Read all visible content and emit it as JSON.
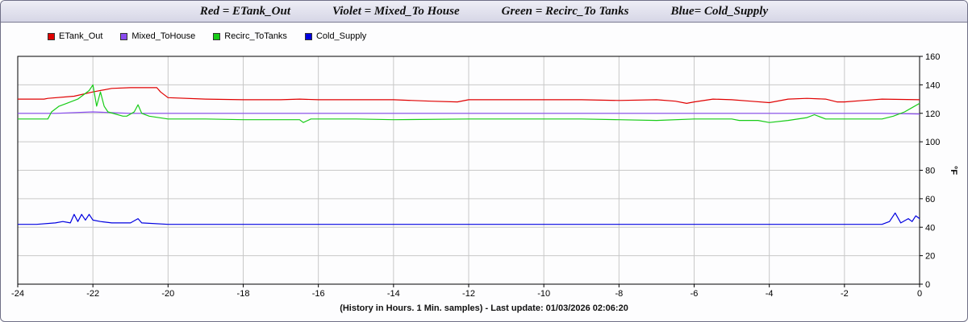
{
  "header": {
    "segments": [
      "Red = ETank_Out",
      "Violet = Mixed_To House",
      "Green = Recirc_To Tanks",
      "Blue= Cold_Supply"
    ]
  },
  "legend": [
    {
      "label": "ETank_Out",
      "color": "#e00000"
    },
    {
      "label": "Mixed_ToHouse",
      "color": "#8a4cf0"
    },
    {
      "label": "Recirc_ToTanks",
      "color": "#17cc17"
    },
    {
      "label": "Cold_Supply",
      "color": "#0000e0"
    }
  ],
  "footer": "(History in Hours. 1 Min. samples) - Last update: 01/03/2026 02:06:20",
  "chart_data": {
    "type": "line",
    "xlim": [
      -24,
      0
    ],
    "ylim": [
      0,
      160
    ],
    "x_ticks": [
      "-24",
      "-22",
      "-20",
      "-18",
      "-16",
      "-14",
      "-12",
      "-10",
      "-8",
      "-6",
      "-4",
      "-2",
      "0"
    ],
    "y_ticks": [
      "0",
      "20",
      "40",
      "60",
      "80",
      "100",
      "120",
      "140",
      "160"
    ],
    "ylabel": "°F",
    "grid": true,
    "series": [
      {
        "name": "ETank_Out",
        "color": "#e00000",
        "points": [
          [
            -24,
            130
          ],
          [
            -23.3,
            130
          ],
          [
            -23.2,
            130.5
          ],
          [
            -22.5,
            132
          ],
          [
            -22,
            135
          ],
          [
            -21.5,
            137.5
          ],
          [
            -21,
            138
          ],
          [
            -20.3,
            138
          ],
          [
            -20.2,
            135
          ],
          [
            -20,
            131
          ],
          [
            -19,
            130
          ],
          [
            -18,
            129.5
          ],
          [
            -17,
            129.5
          ],
          [
            -16.5,
            130
          ],
          [
            -16,
            129.5
          ],
          [
            -15,
            129.5
          ],
          [
            -14,
            129.5
          ],
          [
            -13,
            128.5
          ],
          [
            -12.3,
            128
          ],
          [
            -12,
            129.5
          ],
          [
            -11,
            129.5
          ],
          [
            -10,
            129.5
          ],
          [
            -9,
            129.5
          ],
          [
            -8,
            129
          ],
          [
            -7,
            129.5
          ],
          [
            -6.5,
            128.5
          ],
          [
            -6.2,
            127
          ],
          [
            -6,
            128
          ],
          [
            -5.5,
            130
          ],
          [
            -5,
            129.5
          ],
          [
            -4.5,
            128.5
          ],
          [
            -4,
            127.5
          ],
          [
            -3.5,
            130
          ],
          [
            -3,
            130.5
          ],
          [
            -2.5,
            130
          ],
          [
            -2.2,
            128
          ],
          [
            -2,
            128
          ],
          [
            -1.5,
            129
          ],
          [
            -1,
            130
          ],
          [
            0,
            129.5
          ]
        ]
      },
      {
        "name": "Mixed_ToHouse",
        "color": "#8a4cf0",
        "points": [
          [
            -24,
            120
          ],
          [
            -23,
            120
          ],
          [
            -22,
            121
          ],
          [
            -21,
            120
          ],
          [
            -20,
            120
          ],
          [
            -18,
            120
          ],
          [
            -16,
            120
          ],
          [
            -14,
            120
          ],
          [
            -12,
            120
          ],
          [
            -10,
            120
          ],
          [
            -8,
            120
          ],
          [
            -6,
            120
          ],
          [
            -4,
            120
          ],
          [
            -2,
            120
          ],
          [
            -1,
            120
          ],
          [
            0,
            119.5
          ]
        ]
      },
      {
        "name": "Recirc_ToTanks",
        "color": "#17cc17",
        "points": [
          [
            -24,
            116
          ],
          [
            -23.2,
            116
          ],
          [
            -23.1,
            121
          ],
          [
            -22.9,
            125
          ],
          [
            -22.7,
            127
          ],
          [
            -22.4,
            130
          ],
          [
            -22.1,
            136
          ],
          [
            -22,
            140
          ],
          [
            -21.9,
            125
          ],
          [
            -21.8,
            135
          ],
          [
            -21.7,
            125
          ],
          [
            -21.6,
            121
          ],
          [
            -21.2,
            118
          ],
          [
            -21.1,
            118
          ],
          [
            -20.9,
            121
          ],
          [
            -20.8,
            126
          ],
          [
            -20.7,
            120
          ],
          [
            -20.5,
            118
          ],
          [
            -20,
            116
          ],
          [
            -19,
            116
          ],
          [
            -18,
            115.5
          ],
          [
            -16.5,
            115.5
          ],
          [
            -16.4,
            113.5
          ],
          [
            -16.2,
            116
          ],
          [
            -15,
            116
          ],
          [
            -14,
            115.5
          ],
          [
            -12,
            116
          ],
          [
            -10,
            116
          ],
          [
            -9,
            116
          ],
          [
            -8,
            115.5
          ],
          [
            -7,
            115
          ],
          [
            -6,
            116
          ],
          [
            -5,
            116
          ],
          [
            -4.8,
            115
          ],
          [
            -4.3,
            115
          ],
          [
            -4,
            113.5
          ],
          [
            -3.5,
            115
          ],
          [
            -3,
            117
          ],
          [
            -2.8,
            119
          ],
          [
            -2.5,
            116
          ],
          [
            -2,
            116
          ],
          [
            -1,
            116
          ],
          [
            -0.7,
            118
          ],
          [
            -0.4,
            121
          ],
          [
            -0.2,
            124
          ],
          [
            0,
            127
          ]
        ]
      },
      {
        "name": "Cold_Supply",
        "color": "#0000e0",
        "points": [
          [
            -24,
            42
          ],
          [
            -23.5,
            42
          ],
          [
            -23,
            43
          ],
          [
            -22.8,
            44
          ],
          [
            -22.6,
            43
          ],
          [
            -22.5,
            49
          ],
          [
            -22.4,
            44
          ],
          [
            -22.3,
            49
          ],
          [
            -22.2,
            45
          ],
          [
            -22.1,
            49
          ],
          [
            -22,
            45
          ],
          [
            -21.8,
            44
          ],
          [
            -21.5,
            43
          ],
          [
            -21,
            43
          ],
          [
            -20.8,
            46
          ],
          [
            -20.7,
            43
          ],
          [
            -20,
            42
          ],
          [
            -18,
            42
          ],
          [
            -16,
            42
          ],
          [
            -14,
            42
          ],
          [
            -12,
            42
          ],
          [
            -10,
            42
          ],
          [
            -8,
            42
          ],
          [
            -6,
            42
          ],
          [
            -4,
            42
          ],
          [
            -2,
            42
          ],
          [
            -1,
            42
          ],
          [
            -0.8,
            44
          ],
          [
            -0.65,
            50
          ],
          [
            -0.5,
            43
          ],
          [
            -0.3,
            46
          ],
          [
            -0.2,
            44
          ],
          [
            -0.1,
            48
          ],
          [
            0,
            46
          ]
        ]
      }
    ]
  }
}
